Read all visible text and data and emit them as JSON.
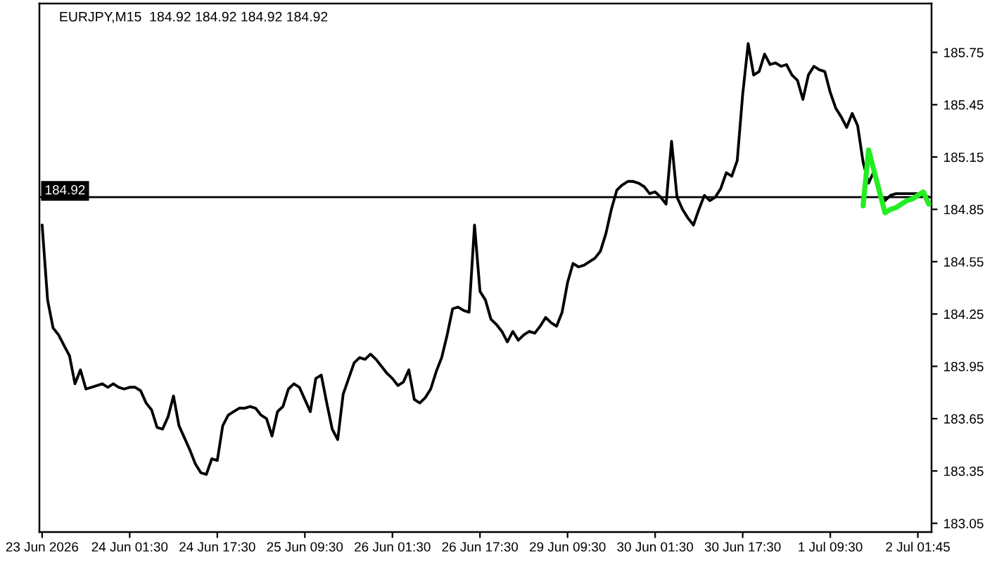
{
  "chart_data": {
    "type": "line",
    "title": "EURJPY,M15  184.92 184.92 184.92 184.92",
    "categories": [
      "23 Jun 2026",
      null,
      null,
      null,
      null,
      null,
      null,
      null,
      null,
      null,
      null,
      null,
      null,
      null,
      null,
      null,
      "24 Jun 01:30",
      null,
      null,
      null,
      null,
      null,
      null,
      null,
      null,
      null,
      null,
      null,
      null,
      null,
      null,
      null,
      "24 Jun 17:30",
      null,
      null,
      null,
      null,
      null,
      null,
      null,
      null,
      null,
      null,
      null,
      null,
      null,
      null,
      null,
      "25 Jun 09:30",
      null,
      null,
      null,
      null,
      null,
      null,
      null,
      null,
      null,
      null,
      null,
      null,
      null,
      null,
      null,
      "26 Jun 01:30",
      null,
      null,
      null,
      null,
      null,
      null,
      null,
      null,
      null,
      null,
      null,
      null,
      null,
      null,
      null,
      "26 Jun 17:30",
      null,
      null,
      null,
      null,
      null,
      null,
      null,
      null,
      null,
      null,
      null,
      null,
      null,
      null,
      null,
      "29 Jun 09:30",
      null,
      null,
      null,
      null,
      null,
      null,
      null,
      null,
      null,
      null,
      null,
      null,
      null,
      null,
      null,
      "30 Jun 01:30",
      null,
      null,
      null,
      null,
      null,
      null,
      null,
      null,
      null,
      null,
      null,
      null,
      null,
      null,
      null,
      "30 Jun 17:30",
      null,
      null,
      null,
      null,
      null,
      null,
      null,
      null,
      null,
      null,
      null,
      null,
      null,
      null,
      null,
      "1 Jul 09:30",
      null,
      null,
      null,
      null,
      null,
      null,
      null,
      null,
      null,
      null,
      null,
      null,
      null,
      null,
      null,
      "2 Jul 01:45",
      null,
      null
    ],
    "series": [
      {
        "color": "#000000",
        "values": [
          184.76,
          184.33,
          184.17,
          184.13,
          184.07,
          184.01,
          183.85,
          183.93,
          183.82,
          183.83,
          183.84,
          183.85,
          183.83,
          183.85,
          183.83,
          183.82,
          183.83,
          183.83,
          183.81,
          183.74,
          183.7,
          183.6,
          183.59,
          183.66,
          183.78,
          183.61,
          183.54,
          183.47,
          183.39,
          183.34,
          183.33,
          183.42,
          183.41,
          183.61,
          183.67,
          183.69,
          183.71,
          183.71,
          183.72,
          183.71,
          183.67,
          183.65,
          183.55,
          183.69,
          183.72,
          183.82,
          183.85,
          183.83,
          183.76,
          183.69,
          183.88,
          183.9,
          183.74,
          183.59,
          183.53,
          183.79,
          183.88,
          183.97,
          184.0,
          183.99,
          184.02,
          183.99,
          183.95,
          183.91,
          183.88,
          183.84,
          183.86,
          183.93,
          183.76,
          183.74,
          183.77,
          183.82,
          183.92,
          184.0,
          184.13,
          184.28,
          184.29,
          184.27,
          184.26,
          184.76,
          184.38,
          184.33,
          184.22,
          184.19,
          184.15,
          184.09,
          184.15,
          184.1,
          184.13,
          184.15,
          184.14,
          184.18,
          184.23,
          184.2,
          184.18,
          184.26,
          184.43,
          184.54,
          184.52,
          184.53,
          184.55,
          184.57,
          184.61,
          184.71,
          184.85,
          184.96,
          184.99,
          185.01,
          185.01,
          185.0,
          184.98,
          184.94,
          184.95,
          184.92,
          184.88,
          185.24,
          184.92,
          184.85,
          184.8,
          184.76,
          184.85,
          184.93,
          184.9,
          184.92,
          184.97,
          185.06,
          185.04,
          185.13,
          185.51,
          185.8,
          185.62,
          185.64,
          185.74,
          185.68,
          185.69,
          185.67,
          185.68,
          185.62,
          185.59,
          185.48,
          185.62,
          185.67,
          185.65,
          185.64,
          185.52,
          185.43,
          185.38,
          185.32,
          185.4,
          185.33,
          185.12,
          185.0,
          185.07,
          184.94,
          184.9,
          184.93,
          184.94,
          184.94,
          184.94,
          184.94,
          184.94,
          184.93,
          184.92
        ]
      },
      {
        "color": "#22ee22",
        "values": [
          null,
          null,
          null,
          null,
          null,
          null,
          null,
          null,
          null,
          null,
          null,
          null,
          null,
          null,
          null,
          null,
          null,
          null,
          null,
          null,
          null,
          null,
          null,
          null,
          null,
          null,
          null,
          null,
          null,
          null,
          null,
          null,
          null,
          null,
          null,
          null,
          null,
          null,
          null,
          null,
          null,
          null,
          null,
          null,
          null,
          null,
          null,
          null,
          null,
          null,
          null,
          null,
          null,
          null,
          null,
          null,
          null,
          null,
          null,
          null,
          null,
          null,
          null,
          null,
          null,
          null,
          null,
          null,
          null,
          null,
          null,
          null,
          null,
          null,
          null,
          null,
          null,
          null,
          null,
          null,
          null,
          null,
          null,
          null,
          null,
          null,
          null,
          null,
          null,
          null,
          null,
          null,
          null,
          null,
          null,
          null,
          null,
          null,
          null,
          null,
          null,
          null,
          null,
          null,
          null,
          null,
          null,
          null,
          null,
          null,
          null,
          null,
          null,
          null,
          null,
          null,
          null,
          null,
          null,
          null,
          null,
          null,
          null,
          null,
          null,
          null,
          null,
          null,
          null,
          null,
          null,
          null,
          null,
          null,
          null,
          null,
          null,
          null,
          null,
          null,
          null,
          null,
          null,
          null,
          null,
          null,
          null,
          null,
          null,
          null,
          184.87,
          185.19,
          185.07,
          184.95,
          184.83,
          184.85,
          184.86,
          184.88,
          184.9,
          184.91,
          184.93,
          184.95,
          184.88
        ]
      }
    ],
    "ylim": [
      183.0,
      186.03
    ],
    "yticks": [
      183.05,
      183.35,
      183.65,
      183.95,
      184.25,
      184.55,
      184.85,
      185.15,
      185.45,
      185.75
    ],
    "ref_lines": [
      {
        "axis": "y",
        "value": 184.92,
        "label": "184.92",
        "color": "#000000"
      }
    ]
  }
}
